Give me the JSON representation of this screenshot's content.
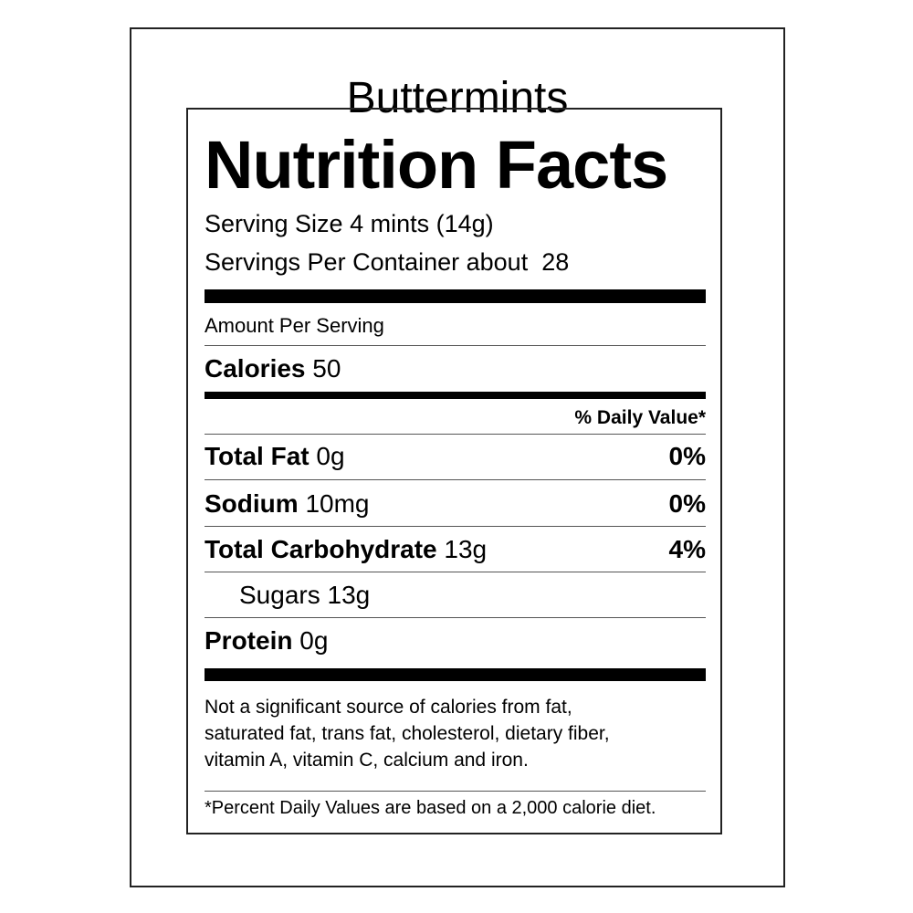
{
  "product": "Buttermints",
  "heading": "Nutrition Facts",
  "serving_size": "Serving Size 4 mints (14g)",
  "servings_per_container": "Servings Per Container about  28",
  "amount_per_serving": "Amount Per Serving",
  "calories": {
    "label": "Calories",
    "value": "50"
  },
  "dv_header": "% Daily Value*",
  "nutrients": [
    {
      "label": "Total Fat",
      "amount": "0g",
      "dv": "0%"
    },
    {
      "label": "Sodium",
      "amount": "10mg",
      "dv": "0%"
    },
    {
      "label": "Total Carbohydrate",
      "amount": "13g",
      "dv": "4%"
    },
    {
      "label": "Sugars",
      "amount": "13g",
      "dv": ""
    },
    {
      "label": "Protein",
      "amount": "0g",
      "dv": ""
    }
  ],
  "note": [
    "Not a significant source of calories from fat,",
    "saturated fat, trans fat, cholesterol, dietary fiber,",
    "vitamin A, vitamin C, calcium and iron."
  ],
  "footnote": "*Percent Daily Values are based on a 2,000 calorie diet."
}
